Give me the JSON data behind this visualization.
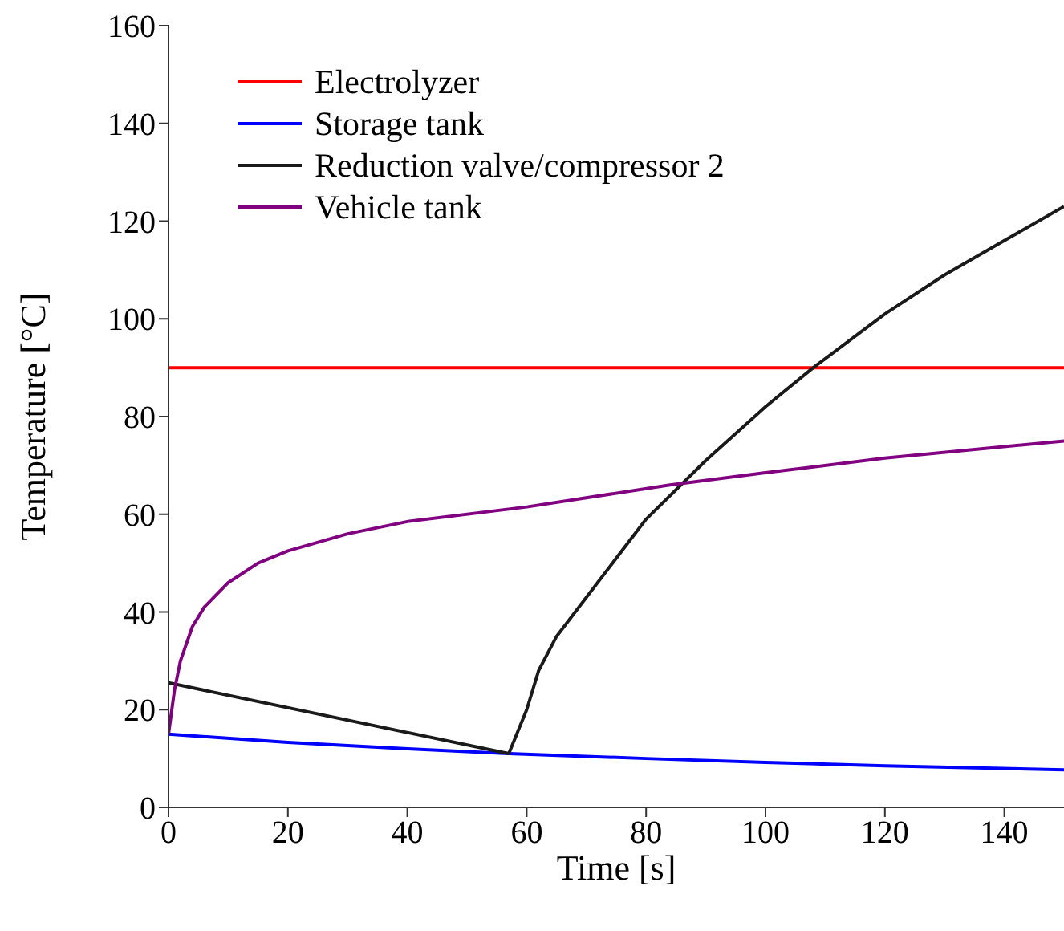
{
  "chart_data": {
    "type": "line",
    "xlabel": "Time [s]",
    "ylabel": "Temperature [°C]",
    "xlim": [
      0,
      150
    ],
    "ylim": [
      0,
      160
    ],
    "xticks": [
      0,
      20,
      40,
      60,
      80,
      100,
      120,
      140
    ],
    "yticks": [
      0,
      20,
      40,
      60,
      80,
      100,
      120,
      140,
      160
    ],
    "grid": false,
    "legend": "top left",
    "marker": "none",
    "line_style": "solid",
    "series": [
      {
        "name": "Electrolyzer",
        "color": "#ff0000",
        "x": [
          0,
          150
        ],
        "values": [
          90,
          90
        ]
      },
      {
        "name": "Storage tank",
        "color": "#0000ff",
        "x": [
          0,
          20,
          40,
          57,
          80,
          100,
          120,
          150
        ],
        "values": [
          15,
          13.3,
          12,
          11,
          10,
          9.2,
          8.5,
          7.7
        ]
      },
      {
        "name": "Reduction valve/compressor 2",
        "color": "#1a1a1a",
        "x": [
          0,
          57,
          60,
          62,
          65,
          70,
          80,
          90,
          100,
          108,
          120,
          130,
          140,
          150
        ],
        "values": [
          25.5,
          11,
          20,
          28,
          35,
          43,
          59,
          71,
          82,
          90,
          101,
          109,
          116,
          123
        ]
      },
      {
        "name": "Vehicle tank",
        "color": "#800080",
        "x": [
          0,
          1,
          2,
          4,
          6,
          10,
          15,
          20,
          30,
          40,
          60,
          84,
          100,
          120,
          150
        ],
        "values": [
          15,
          24,
          30,
          37,
          41,
          46,
          50,
          52.5,
          56,
          58.5,
          61.5,
          66,
          68.5,
          71.5,
          75
        ]
      }
    ]
  }
}
